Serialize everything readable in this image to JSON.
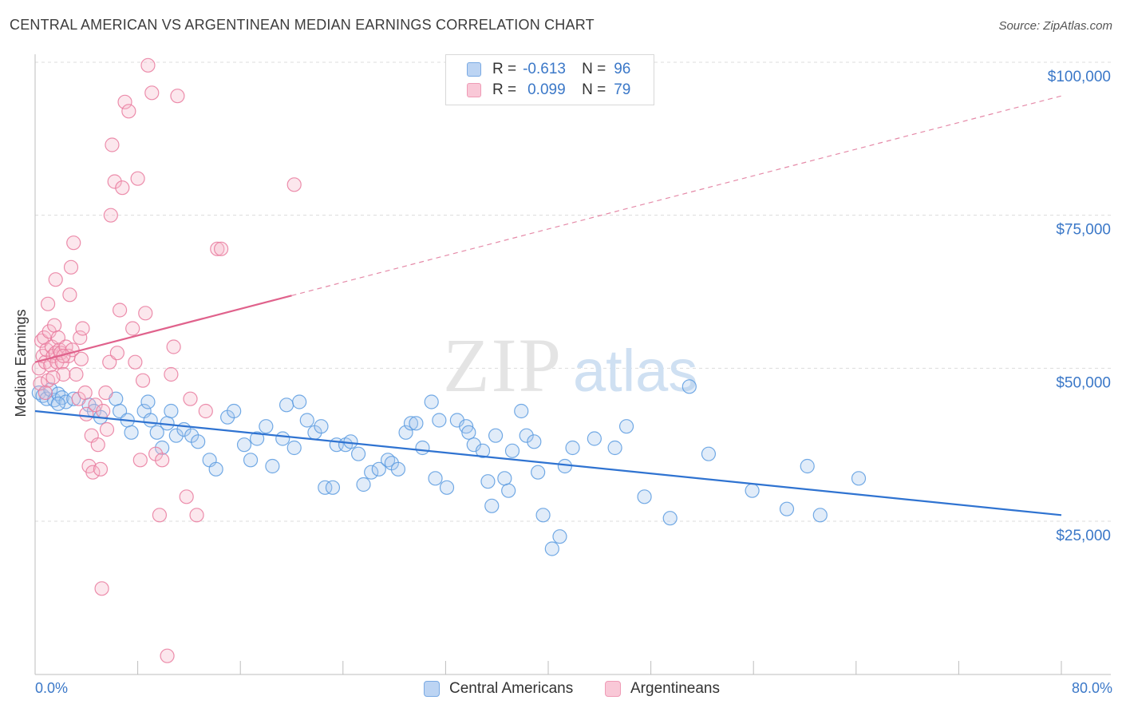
{
  "title": "CENTRAL AMERICAN VS ARGENTINEAN MEDIAN EARNINGS CORRELATION CHART",
  "source": "Source: ZipAtlas.com",
  "watermark": {
    "zip": "ZIP",
    "atlas": "atlas"
  },
  "legend": {
    "r_label": "R =",
    "n_label": "N =",
    "rows": [
      {
        "r": "-0.613",
        "n": "96",
        "color": "#5b9be0"
      },
      {
        "r": "0.099",
        "n": "79",
        "color": "#e97a9e"
      }
    ]
  },
  "bottom_legend": [
    "Central Americans",
    "Argentineans"
  ],
  "x_min_label": "0.0%",
  "x_max_label": "80.0%",
  "y_tick_labels": [
    "$25,000",
    "$50,000",
    "$75,000",
    "$100,000"
  ],
  "chart_data": {
    "type": "scatter",
    "xlabel": "",
    "ylabel": "Median Earnings",
    "xlim": [
      0,
      80
    ],
    "ylim": [
      0,
      100000
    ],
    "y_ticks": [
      25000,
      50000,
      75000,
      100000
    ],
    "grid": true,
    "series": [
      {
        "name": "Central Americans",
        "color": "#5b9be0",
        "trend": {
          "x": [
            0,
            80
          ],
          "y": [
            43000,
            26000
          ],
          "style": "solid"
        },
        "points": [
          [
            0.3,
            46000
          ],
          [
            0.6,
            45500
          ],
          [
            0.9,
            45000
          ],
          [
            1.2,
            46500
          ],
          [
            1.5,
            44800
          ],
          [
            1.8,
            45800
          ],
          [
            2.1,
            45200
          ],
          [
            2.4,
            44500
          ],
          [
            3.0,
            45000
          ],
          [
            4.2,
            44000
          ],
          [
            4.6,
            43000
          ],
          [
            5.1,
            42000
          ],
          [
            6.3,
            45000
          ],
          [
            6.6,
            43000
          ],
          [
            7.2,
            41500
          ],
          [
            7.5,
            39500
          ],
          [
            8.5,
            43000
          ],
          [
            8.8,
            44500
          ],
          [
            9.0,
            41500
          ],
          [
            9.5,
            39500
          ],
          [
            9.9,
            37000
          ],
          [
            10.3,
            41000
          ],
          [
            10.6,
            43000
          ],
          [
            11.0,
            39000
          ],
          [
            11.6,
            40000
          ],
          [
            12.2,
            39000
          ],
          [
            12.7,
            38000
          ],
          [
            13.6,
            35000
          ],
          [
            14.1,
            33500
          ],
          [
            15.0,
            42000
          ],
          [
            15.5,
            43000
          ],
          [
            16.3,
            37500
          ],
          [
            16.8,
            35000
          ],
          [
            17.3,
            38500
          ],
          [
            18.0,
            40500
          ],
          [
            18.5,
            34000
          ],
          [
            19.3,
            38500
          ],
          [
            19.6,
            44000
          ],
          [
            20.2,
            37000
          ],
          [
            20.6,
            44500
          ],
          [
            21.2,
            41500
          ],
          [
            21.8,
            39500
          ],
          [
            22.3,
            40500
          ],
          [
            22.6,
            30500
          ],
          [
            23.2,
            30500
          ],
          [
            23.5,
            37500
          ],
          [
            24.2,
            37500
          ],
          [
            24.6,
            38000
          ],
          [
            25.2,
            36000
          ],
          [
            25.6,
            31000
          ],
          [
            26.2,
            33000
          ],
          [
            26.8,
            33500
          ],
          [
            27.5,
            35000
          ],
          [
            27.8,
            34500
          ],
          [
            28.3,
            33500
          ],
          [
            28.9,
            39500
          ],
          [
            29.3,
            41000
          ],
          [
            29.7,
            41000
          ],
          [
            30.2,
            37000
          ],
          [
            30.9,
            44500
          ],
          [
            31.2,
            32000
          ],
          [
            31.5,
            41500
          ],
          [
            32.1,
            30500
          ],
          [
            32.9,
            41500
          ],
          [
            33.6,
            40500
          ],
          [
            33.8,
            39500
          ],
          [
            34.2,
            37500
          ],
          [
            34.9,
            36500
          ],
          [
            35.3,
            31500
          ],
          [
            35.6,
            27500
          ],
          [
            35.9,
            39000
          ],
          [
            36.6,
            32000
          ],
          [
            36.9,
            30000
          ],
          [
            37.2,
            36500
          ],
          [
            37.9,
            43000
          ],
          [
            38.3,
            39000
          ],
          [
            38.9,
            38000
          ],
          [
            39.2,
            33000
          ],
          [
            39.6,
            26000
          ],
          [
            40.3,
            20500
          ],
          [
            40.9,
            22500
          ],
          [
            41.3,
            34000
          ],
          [
            41.9,
            37000
          ],
          [
            43.6,
            38500
          ],
          [
            45.2,
            37000
          ],
          [
            46.1,
            40500
          ],
          [
            47.5,
            29000
          ],
          [
            49.5,
            25500
          ],
          [
            51.0,
            47000
          ],
          [
            52.5,
            36000
          ],
          [
            55.9,
            30000
          ],
          [
            58.6,
            27000
          ],
          [
            60.2,
            34000
          ],
          [
            61.2,
            26000
          ],
          [
            64.2,
            32000
          ],
          [
            1.8,
            44200
          ]
        ]
      },
      {
        "name": "Argentineans",
        "color": "#e97a9e",
        "trend": {
          "x": [
            0,
            80
          ],
          "y": [
            51000,
            94500
          ],
          "style": "solid_to_dashed",
          "solid_end_x": 20
        },
        "points": [
          [
            0.3,
            50000
          ],
          [
            0.4,
            47500
          ],
          [
            0.5,
            54500
          ],
          [
            0.6,
            52000
          ],
          [
            0.7,
            55000
          ],
          [
            0.8,
            51000
          ],
          [
            0.9,
            53000
          ],
          [
            1.0,
            48000
          ],
          [
            1.1,
            56000
          ],
          [
            1.2,
            50500
          ],
          [
            1.3,
            53500
          ],
          [
            1.4,
            52000
          ],
          [
            1.5,
            57000
          ],
          [
            1.6,
            52500
          ],
          [
            1.7,
            51000
          ],
          [
            1.8,
            55000
          ],
          [
            1.9,
            53000
          ],
          [
            2.0,
            52500
          ],
          [
            2.1,
            51000
          ],
          [
            2.2,
            49000
          ],
          [
            2.4,
            53500
          ],
          [
            2.6,
            52000
          ],
          [
            2.7,
            62000
          ],
          [
            2.8,
            66500
          ],
          [
            2.9,
            53000
          ],
          [
            3.0,
            70500
          ],
          [
            3.2,
            49000
          ],
          [
            3.4,
            45000
          ],
          [
            3.5,
            55000
          ],
          [
            3.6,
            51500
          ],
          [
            3.7,
            56500
          ],
          [
            3.9,
            46000
          ],
          [
            4.0,
            42500
          ],
          [
            4.2,
            34000
          ],
          [
            4.4,
            39000
          ],
          [
            4.5,
            33000
          ],
          [
            4.7,
            44000
          ],
          [
            4.9,
            37500
          ],
          [
            5.1,
            33500
          ],
          [
            5.3,
            43000
          ],
          [
            5.5,
            46000
          ],
          [
            5.6,
            40000
          ],
          [
            5.8,
            51000
          ],
          [
            5.9,
            75000
          ],
          [
            6.0,
            86500
          ],
          [
            6.2,
            80500
          ],
          [
            6.4,
            52500
          ],
          [
            6.6,
            59500
          ],
          [
            6.8,
            79500
          ],
          [
            7.0,
            93500
          ],
          [
            7.3,
            92000
          ],
          [
            7.6,
            56500
          ],
          [
            7.8,
            51000
          ],
          [
            8.0,
            81000
          ],
          [
            8.2,
            35000
          ],
          [
            8.4,
            48000
          ],
          [
            8.6,
            59000
          ],
          [
            8.8,
            99500
          ],
          [
            9.1,
            95000
          ],
          [
            9.4,
            36000
          ],
          [
            9.7,
            26000
          ],
          [
            9.9,
            35000
          ],
          [
            10.3,
            3000
          ],
          [
            10.6,
            49000
          ],
          [
            10.8,
            53500
          ],
          [
            11.1,
            94500
          ],
          [
            11.8,
            29000
          ],
          [
            12.1,
            45000
          ],
          [
            12.6,
            26000
          ],
          [
            13.3,
            43000
          ],
          [
            14.2,
            69500
          ],
          [
            14.5,
            69500
          ],
          [
            20.2,
            80000
          ],
          [
            1.0,
            60500
          ],
          [
            5.2,
            14000
          ],
          [
            1.6,
            64500
          ],
          [
            2.2,
            52000
          ],
          [
            0.8,
            46000
          ],
          [
            1.4,
            48500
          ]
        ]
      }
    ]
  }
}
